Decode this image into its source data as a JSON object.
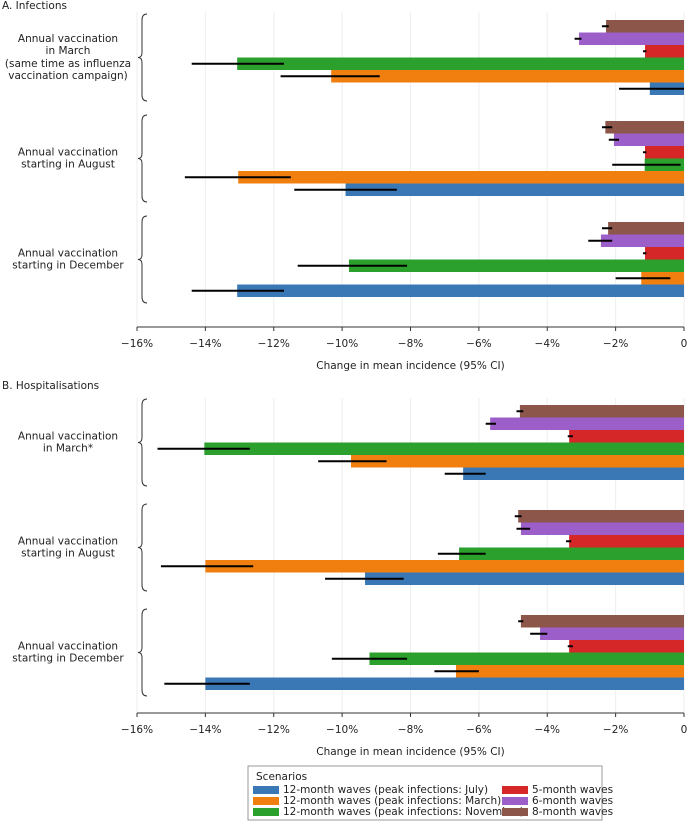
{
  "chart_data": [
    {
      "type": "bar",
      "orientation": "horizontal",
      "title": "A. Infections",
      "categories": [
        "Annual vaccination\nin March\n(same time as influenza\nvaccination campaign)",
        "Annual vaccination\nstarting in August",
        "Annual vaccination\nstarting in December"
      ],
      "series": [
        {
          "name": "12-month waves (peak infections: July)",
          "color": "#3a78b5",
          "values": [
            -1.0,
            -9.9,
            -13.07
          ],
          "ci": [
            [
              -1.9,
              0
            ],
            [
              -11.4,
              -8.4
            ],
            [
              -14.4,
              -11.7
            ]
          ]
        },
        {
          "name": "12-month waves (peak infections: March)",
          "color": "#f07f10",
          "values": [
            -10.32,
            -13.04,
            -1.25
          ],
          "ci": [
            [
              -11.8,
              -8.9
            ],
            [
              -14.6,
              -11.5
            ],
            [
              -2.0,
              -0.4
            ]
          ]
        },
        {
          "name": "12-month waves (peak infections: November)",
          "color": "#2ca02c",
          "values": [
            -13.07,
            -1.15,
            -9.8
          ],
          "ci": [
            [
              -14.4,
              -11.7
            ],
            [
              -2.1,
              -0.1
            ],
            [
              -11.3,
              -8.1
            ]
          ]
        },
        {
          "name": "5-month waves",
          "color": "#d62728",
          "values": [
            -1.14,
            -1.14,
            -1.14
          ],
          "ci": [
            [
              -1.2,
              -1.1
            ],
            [
              -1.2,
              -1.1
            ],
            [
              -1.2,
              -1.1
            ]
          ]
        },
        {
          "name": "6-month waves",
          "color": "#9c5ec9",
          "values": [
            -3.07,
            -2.05,
            -2.43
          ],
          "ci": [
            [
              -3.2,
              -3.0
            ],
            [
              -2.2,
              -1.9
            ],
            [
              -2.8,
              -2.1
            ]
          ]
        },
        {
          "name": "8-month waves",
          "color": "#8c564b",
          "values": [
            -2.28,
            -2.3,
            -2.22
          ],
          "ci": [
            [
              -2.4,
              -2.2
            ],
            [
              -2.4,
              -2.1
            ],
            [
              -2.4,
              -2.1
            ]
          ]
        }
      ],
      "xlim": [
        -16,
        0
      ],
      "xticks": [
        {
          "value": -16,
          "label": "−16%"
        },
        {
          "value": -14,
          "label": "−14%"
        },
        {
          "value": -12,
          "label": "−12%"
        },
        {
          "value": -10,
          "label": "−10%"
        },
        {
          "value": -8,
          "label": "−8%"
        },
        {
          "value": -6,
          "label": "−6%"
        },
        {
          "value": -4,
          "label": "−4%"
        },
        {
          "value": -2,
          "label": "−2%"
        },
        0
      ],
      "xlabel": "Change in mean incidence (95% CI)",
      "grid": true
    },
    {
      "type": "bar",
      "orientation": "horizontal",
      "title": "B. Hospitalisations",
      "categories": [
        "Annual vaccination\nin March*",
        "Annual vaccination\nstarting in August",
        "Annual vaccination\nstarting in December"
      ],
      "series": [
        {
          "name": "12-month waves (peak infections: July)",
          "color": "#3a78b5",
          "values": [
            -6.46,
            -9.33,
            -14.0
          ],
          "ci": [
            [
              -7.0,
              -5.8
            ],
            [
              -10.5,
              -8.2
            ],
            [
              -15.2,
              -12.7
            ]
          ]
        },
        {
          "name": "12-month waves (peak infections: March)",
          "color": "#f07f10",
          "values": [
            -9.74,
            -14.0,
            -6.67
          ],
          "ci": [
            [
              -10.7,
              -8.7
            ],
            [
              -15.3,
              -12.6
            ],
            [
              -7.3,
              -6.0
            ]
          ]
        },
        {
          "name": "12-month waves (peak infections: November)",
          "color": "#2ca02c",
          "values": [
            -14.03,
            -6.58,
            -9.2
          ],
          "ci": [
            [
              -15.4,
              -12.7
            ],
            [
              -7.2,
              -5.8
            ],
            [
              -10.3,
              -8.1
            ]
          ]
        },
        {
          "name": "5-month waves",
          "color": "#d62728",
          "values": [
            -3.36,
            -3.36,
            -3.36
          ],
          "ci": [
            [
              -3.4,
              -3.25
            ],
            [
              -3.45,
              -3.3
            ],
            [
              -3.4,
              -3.25
            ]
          ]
        },
        {
          "name": "6-month waves",
          "color": "#9c5ec9",
          "values": [
            -5.67,
            -4.77,
            -4.21
          ],
          "ci": [
            [
              -5.8,
              -5.5
            ],
            [
              -4.9,
              -4.5
            ],
            [
              -4.5,
              -4.0
            ]
          ]
        },
        {
          "name": "8-month waves",
          "color": "#8c564b",
          "values": [
            -4.8,
            -4.85,
            -4.77
          ],
          "ci": [
            [
              -4.9,
              -4.7
            ],
            [
              -4.95,
              -4.75
            ],
            [
              -4.85,
              -4.7
            ]
          ]
        }
      ],
      "xlim": [
        -16,
        0
      ],
      "xticks": [
        {
          "value": -16,
          "label": "−16%"
        },
        {
          "value": -14,
          "label": "−14%"
        },
        {
          "value": -12,
          "label": "−12%"
        },
        {
          "value": -10,
          "label": "−10%"
        },
        {
          "value": -8,
          "label": "−8%"
        },
        {
          "value": -6,
          "label": "−6%"
        },
        {
          "value": -4,
          "label": "−4%"
        },
        {
          "value": -2,
          "label": "−2%"
        },
        0
      ],
      "xlabel": "Change in mean incidence (95% CI)",
      "grid": true
    }
  ],
  "legend": {
    "title": "Scenarios"
  }
}
